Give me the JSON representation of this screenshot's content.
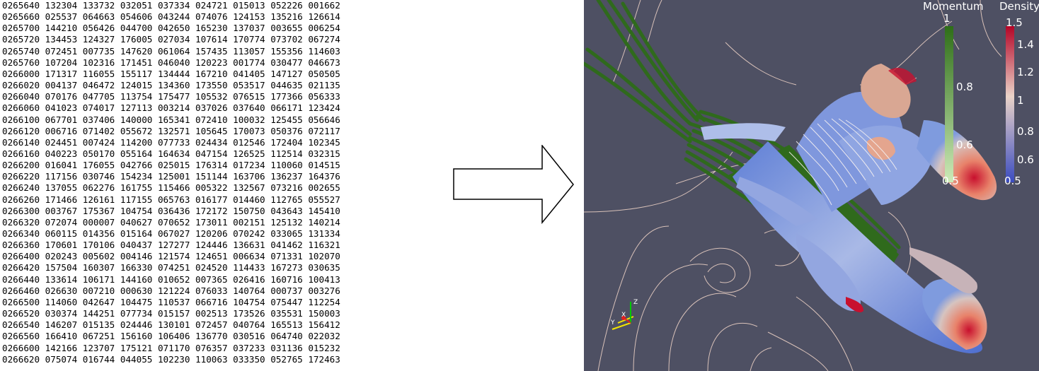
{
  "dump_rows": [
    [
      "0265640",
      "132304",
      "133732",
      "032051",
      "037334",
      "024721",
      "015013",
      "052226",
      "001662"
    ],
    [
      "0265660",
      "025537",
      "064663",
      "054606",
      "043244",
      "074076",
      "124153",
      "135216",
      "126614"
    ],
    [
      "0265700",
      "144210",
      "056426",
      "044700",
      "042650",
      "165230",
      "137037",
      "003655",
      "006254"
    ],
    [
      "0265720",
      "134453",
      "124327",
      "176005",
      "027034",
      "107614",
      "170774",
      "073702",
      "067274"
    ],
    [
      "0265740",
      "072451",
      "007735",
      "147620",
      "061064",
      "157435",
      "113057",
      "155356",
      "114603"
    ],
    [
      "0265760",
      "107204",
      "102316",
      "171451",
      "046040",
      "120223",
      "001774",
      "030477",
      "046673"
    ],
    [
      "0266000",
      "171317",
      "116055",
      "155117",
      "134444",
      "167210",
      "041405",
      "147127",
      "050505"
    ],
    [
      "0266020",
      "004137",
      "046472",
      "124015",
      "134360",
      "173550",
      "053517",
      "044635",
      "021135"
    ],
    [
      "0266040",
      "070176",
      "047705",
      "113754",
      "175477",
      "105532",
      "076515",
      "177366",
      "056333"
    ],
    [
      "0266060",
      "041023",
      "074017",
      "127113",
      "003214",
      "037026",
      "037640",
      "066171",
      "123424"
    ],
    [
      "0266100",
      "067701",
      "037406",
      "140000",
      "165341",
      "072410",
      "100032",
      "125455",
      "056646"
    ],
    [
      "0266120",
      "006716",
      "071402",
      "055672",
      "132571",
      "105645",
      "170073",
      "050376",
      "072117"
    ],
    [
      "0266140",
      "024451",
      "007424",
      "114200",
      "077733",
      "024434",
      "012546",
      "172404",
      "102345"
    ],
    [
      "0266160",
      "040223",
      "050170",
      "055164",
      "164634",
      "047154",
      "126525",
      "112514",
      "032315"
    ],
    [
      "0266200",
      "016041",
      "176055",
      "042766",
      "025015",
      "176314",
      "017234",
      "110060",
      "014515"
    ],
    [
      "0266220",
      "117156",
      "030746",
      "154234",
      "125001",
      "151144",
      "163706",
      "136237",
      "164376"
    ],
    [
      "0266240",
      "137055",
      "062276",
      "161755",
      "115466",
      "005322",
      "132567",
      "073216",
      "002655"
    ],
    [
      "0266260",
      "171466",
      "126161",
      "117155",
      "065763",
      "016177",
      "014460",
      "112765",
      "055527"
    ],
    [
      "0266300",
      "003767",
      "175367",
      "104754",
      "036436",
      "172172",
      "150750",
      "043643",
      "145410"
    ],
    [
      "0266320",
      "072074",
      "000007",
      "040627",
      "070652",
      "173011",
      "002151",
      "125132",
      "140214"
    ],
    [
      "0266340",
      "060115",
      "014356",
      "015164",
      "067027",
      "120206",
      "070242",
      "033065",
      "131334"
    ],
    [
      "0266360",
      "170601",
      "170106",
      "040437",
      "127277",
      "124446",
      "136631",
      "041462",
      "116321"
    ],
    [
      "0266400",
      "020243",
      "005602",
      "004146",
      "121574",
      "124651",
      "006634",
      "071331",
      "102070"
    ],
    [
      "0266420",
      "157504",
      "160307",
      "166330",
      "074251",
      "024520",
      "114433",
      "167273",
      "030635"
    ],
    [
      "0266440",
      "133614",
      "106171",
      "144160",
      "010652",
      "007365",
      "026416",
      "160716",
      "100413"
    ],
    [
      "0266460",
      "026630",
      "007210",
      "000630",
      "121224",
      "076033",
      "140764",
      "000737",
      "003276"
    ],
    [
      "0266500",
      "114060",
      "042647",
      "104475",
      "110537",
      "066716",
      "104754",
      "075447",
      "112254"
    ],
    [
      "0266520",
      "030374",
      "144251",
      "077734",
      "015157",
      "002513",
      "173526",
      "035531",
      "150003"
    ],
    [
      "0266540",
      "146207",
      "015135",
      "024446",
      "130101",
      "072457",
      "040764",
      "165513",
      "156412"
    ],
    [
      "0266560",
      "166410",
      "067251",
      "156160",
      "106406",
      "136770",
      "030516",
      "064740",
      "022032"
    ],
    [
      "0266600",
      "142166",
      "123707",
      "175121",
      "071170",
      "076357",
      "037233",
      "031136",
      "015232"
    ],
    [
      "0266620",
      "075074",
      "016744",
      "044055",
      "102230",
      "110063",
      "033350",
      "052765",
      "172463"
    ]
  ],
  "arrow": {
    "icon": "right-arrow-icon",
    "fill": "#ffffff",
    "stroke": "#000000"
  },
  "visualization": {
    "background": "#4e5063",
    "streamline_color": "#2f6a1c",
    "contour_color": "#f2d6c9",
    "legends": {
      "momentum": {
        "title": "Momentum",
        "ticks": [
          "1",
          "0.8",
          "0.6",
          "0.5"
        ],
        "colors": [
          "#2e6e17",
          "#cdeab8"
        ]
      },
      "density": {
        "title": "Density",
        "ticks": [
          "1.5",
          "1.4",
          "1.2",
          "1",
          "0.8",
          "0.6",
          "0.5"
        ],
        "colors": [
          "#b40426",
          "#e9d5cc",
          "#3b4cc0"
        ]
      }
    },
    "axes": {
      "x": "X",
      "y": "Y",
      "z": "Z"
    }
  }
}
